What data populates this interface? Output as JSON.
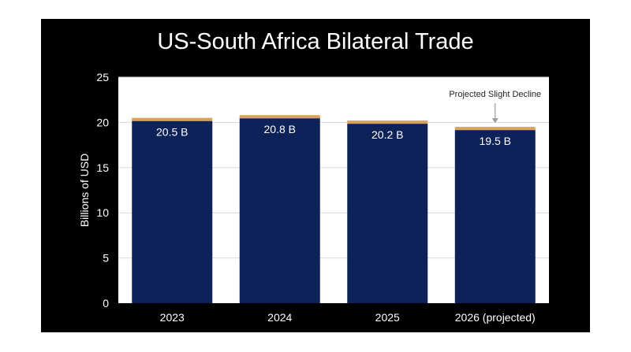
{
  "chart_data": {
    "type": "bar",
    "title": "US-South Africa Bilateral Trade",
    "xlabel": "",
    "ylabel": "Billions of USD",
    "categories": [
      "2023",
      "2024",
      "2025",
      "2026 (projected)"
    ],
    "values": [
      20.5,
      20.8,
      20.2,
      19.5
    ],
    "data_labels": [
      "20.5 B",
      "20.8 B",
      "20.2 B",
      "19.5 B"
    ],
    "ylim": [
      0,
      25
    ],
    "yticks": [
      0,
      5,
      10,
      15,
      20,
      25
    ],
    "grid": true,
    "annotation": {
      "text": "Projected Slight Decline",
      "category_index": 3
    },
    "colors": {
      "bar": "#0d2259",
      "bar_cap": "#d9a35f",
      "background": "#000000",
      "plot_area": "#ffffff",
      "grid": "#d9d9d9"
    }
  }
}
